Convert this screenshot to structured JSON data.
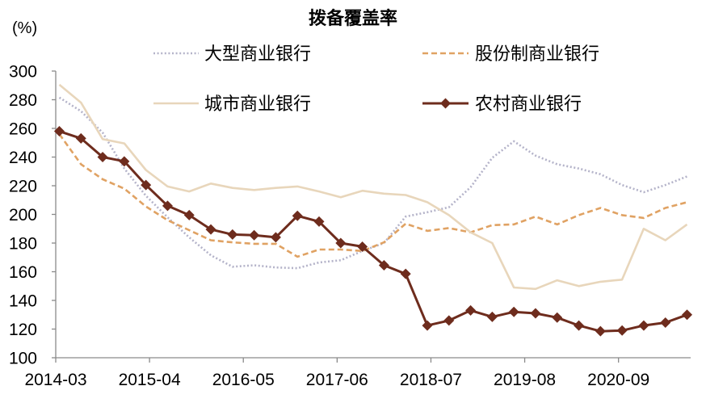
{
  "chart_data": {
    "type": "line",
    "title": "拨备覆盖率",
    "ylabel": "(%)",
    "xlim": [
      "2014-03",
      "2021-06"
    ],
    "ylim": [
      100,
      300
    ],
    "yticks": [
      100,
      120,
      140,
      160,
      180,
      200,
      220,
      240,
      260,
      280,
      300
    ],
    "xticks": [
      "2014-03",
      "2015-04",
      "2016-05",
      "2017-06",
      "2018-07",
      "2019-08",
      "2020-09"
    ],
    "grid": false,
    "legend_position": "top",
    "x": [
      "2014-03",
      "2014-06",
      "2014-09",
      "2014-12",
      "2015-03",
      "2015-06",
      "2015-09",
      "2015-12",
      "2016-03",
      "2016-06",
      "2016-09",
      "2016-12",
      "2017-03",
      "2017-06",
      "2017-09",
      "2017-12",
      "2018-03",
      "2018-06",
      "2018-09",
      "2018-12",
      "2019-03",
      "2019-06",
      "2019-09",
      "2019-12",
      "2020-03",
      "2020-06",
      "2020-09",
      "2020-12",
      "2021-03",
      "2021-06"
    ],
    "series": [
      {
        "name": "大型商业银行",
        "color": "#b4b3c9",
        "line_style": "dotted",
        "marker": "none",
        "values": [
          281.5,
          272.0,
          257.0,
          232.0,
          213.0,
          198.0,
          184.0,
          171.5,
          163.5,
          164.5,
          163.0,
          162.5,
          166.5,
          168.0,
          174.5,
          180.0,
          198.5,
          201.5,
          205.0,
          219.0,
          239.5,
          251.0,
          241.0,
          235.0,
          232.0,
          228.0,
          220.5,
          215.5,
          220.5,
          226.5
        ]
      },
      {
        "name": "股份制商业银行",
        "color": "#e0a263",
        "line_style": "dashed",
        "marker": "none",
        "values": [
          256.0,
          235.0,
          224.5,
          218.0,
          205.5,
          196.0,
          189.0,
          182.0,
          180.5,
          179.5,
          179.5,
          170.5,
          175.5,
          175.5,
          174.5,
          180.5,
          193.5,
          188.5,
          190.5,
          187.5,
          192.5,
          193.0,
          198.5,
          193.0,
          199.5,
          204.5,
          199.5,
          197.5,
          204.5,
          208.5
        ]
      },
      {
        "name": "城市商业银行",
        "color": "#e8d6bb",
        "line_style": "solid",
        "marker": "none",
        "values": [
          290.5,
          278.0,
          252.5,
          249.5,
          231.0,
          219.5,
          216.0,
          221.5,
          218.5,
          217.0,
          218.5,
          219.5,
          216.0,
          212.0,
          216.5,
          214.5,
          213.5,
          208.5,
          199.5,
          187.5,
          180.0,
          149.0,
          148.0,
          154.0,
          150.0,
          153.0,
          154.5,
          190.0,
          182.0,
          193.0
        ]
      },
      {
        "name": "农村商业银行",
        "color": "#6e2c1d",
        "line_style": "solid",
        "marker": "diamond",
        "values": [
          258.0,
          253.0,
          240.0,
          237.0,
          220.5,
          206.0,
          199.5,
          189.5,
          186.0,
          185.5,
          184.0,
          199.0,
          195.0,
          180.0,
          177.5,
          164.5,
          158.5,
          122.5,
          126.0,
          133.0,
          128.5,
          132.0,
          131.0,
          128.0,
          122.5,
          118.5,
          119.0,
          122.5,
          124.5,
          130.0
        ]
      }
    ]
  }
}
